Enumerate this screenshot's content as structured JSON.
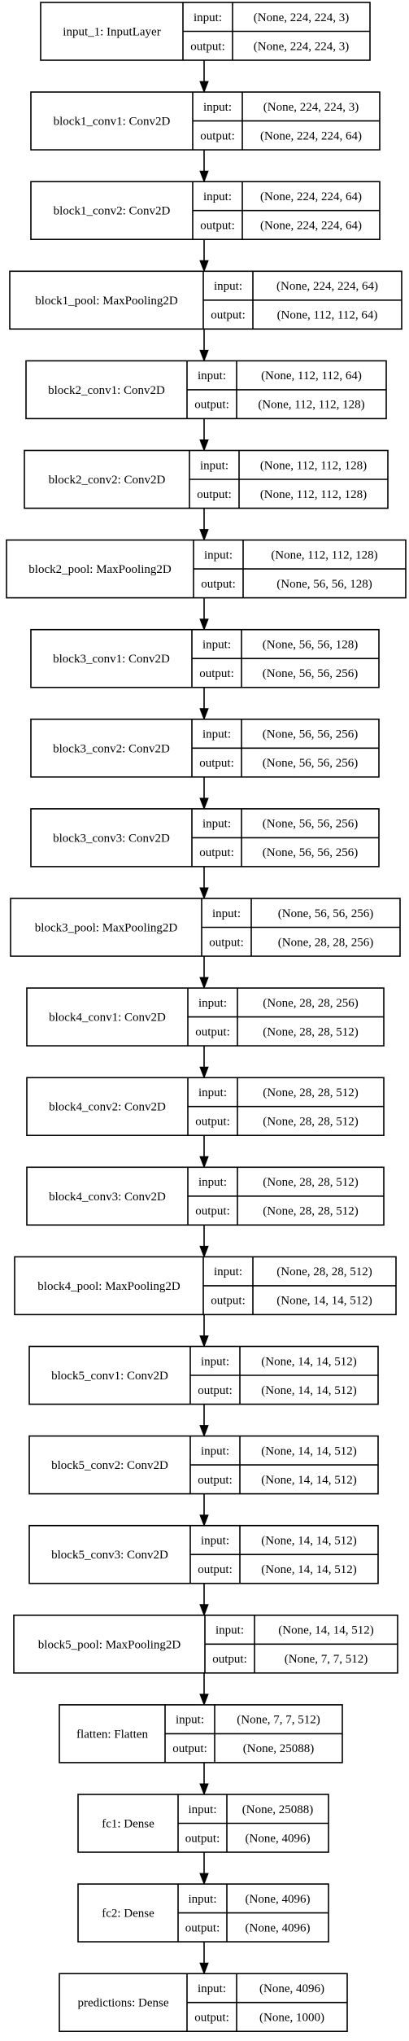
{
  "labels": {
    "input": "input:",
    "output": "output:"
  },
  "layers": [
    {
      "name": "input_1: InputLayer",
      "input": "(None, 224, 224, 3)",
      "output": "(None, 224, 224, 3)"
    },
    {
      "name": "block1_conv1: Conv2D",
      "input": "(None, 224, 224, 3)",
      "output": "(None, 224, 224, 64)"
    },
    {
      "name": "block1_conv2: Conv2D",
      "input": "(None, 224, 224, 64)",
      "output": "(None, 224, 224, 64)"
    },
    {
      "name": "block1_pool: MaxPooling2D",
      "input": "(None, 224, 224, 64)",
      "output": "(None, 112, 112, 64)"
    },
    {
      "name": "block2_conv1: Conv2D",
      "input": "(None, 112, 112, 64)",
      "output": "(None, 112, 112, 128)"
    },
    {
      "name": "block2_conv2: Conv2D",
      "input": "(None, 112, 112, 128)",
      "output": "(None, 112, 112, 128)"
    },
    {
      "name": "block2_pool: MaxPooling2D",
      "input": "(None, 112, 112, 128)",
      "output": "(None, 56, 56, 128)"
    },
    {
      "name": "block3_conv1: Conv2D",
      "input": "(None, 56, 56, 128)",
      "output": "(None, 56, 56, 256)"
    },
    {
      "name": "block3_conv2: Conv2D",
      "input": "(None, 56, 56, 256)",
      "output": "(None, 56, 56, 256)"
    },
    {
      "name": "block3_conv3: Conv2D",
      "input": "(None, 56, 56, 256)",
      "output": "(None, 56, 56, 256)"
    },
    {
      "name": "block3_pool: MaxPooling2D",
      "input": "(None, 56, 56, 256)",
      "output": "(None, 28, 28, 256)"
    },
    {
      "name": "block4_conv1: Conv2D",
      "input": "(None, 28, 28, 256)",
      "output": "(None, 28, 28, 512)"
    },
    {
      "name": "block4_conv2: Conv2D",
      "input": "(None, 28, 28, 512)",
      "output": "(None, 28, 28, 512)"
    },
    {
      "name": "block4_conv3: Conv2D",
      "input": "(None, 28, 28, 512)",
      "output": "(None, 28, 28, 512)"
    },
    {
      "name": "block4_pool: MaxPooling2D",
      "input": "(None, 28, 28, 512)",
      "output": "(None, 14, 14, 512)"
    },
    {
      "name": "block5_conv1: Conv2D",
      "input": "(None, 14, 14, 512)",
      "output": "(None, 14, 14, 512)"
    },
    {
      "name": "block5_conv2: Conv2D",
      "input": "(None, 14, 14, 512)",
      "output": "(None, 14, 14, 512)"
    },
    {
      "name": "block5_conv3: Conv2D",
      "input": "(None, 14, 14, 512)",
      "output": "(None, 14, 14, 512)"
    },
    {
      "name": "block5_pool: MaxPooling2D",
      "input": "(None, 14, 14, 512)",
      "output": "(None, 7, 7, 512)"
    },
    {
      "name": "flatten: Flatten",
      "input": "(None, 7, 7, 512)",
      "output": "(None, 25088)"
    },
    {
      "name": "fc1: Dense",
      "input": "(None, 25088)",
      "output": "(None, 4096)"
    },
    {
      "name": "fc2: Dense",
      "input": "(None, 4096)",
      "output": "(None, 4096)"
    },
    {
      "name": "predictions: Dense",
      "input": "(None, 4096)",
      "output": "(None, 1000)"
    }
  ]
}
